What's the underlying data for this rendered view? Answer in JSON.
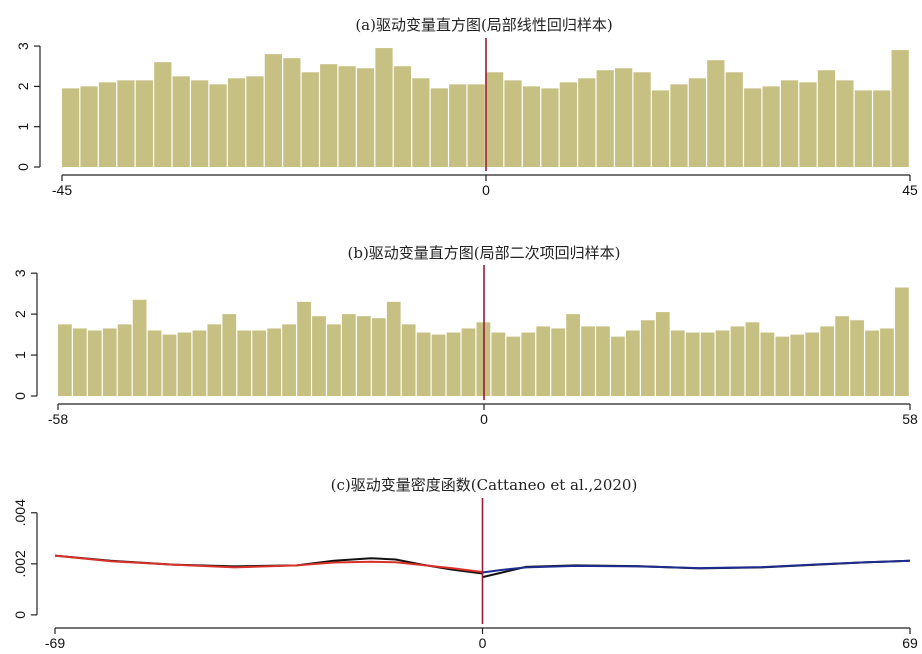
{
  "chart_data": [
    {
      "id": "a",
      "type": "bar",
      "title": "(a)驱动变量直方图(局部线性回归样本)",
      "xlim": [
        -45,
        45
      ],
      "xticks": [
        "-45",
        "0",
        "45"
      ],
      "ylim": [
        0,
        3.2
      ],
      "yticks": [
        "0",
        "1",
        "2",
        "3"
      ],
      "bar_color": "#c7c083",
      "cutoff": 0,
      "cutoff_color": "#9b1b37",
      "values": [
        1.95,
        2.0,
        2.1,
        2.15,
        2.15,
        2.6,
        2.25,
        2.15,
        2.05,
        2.2,
        2.25,
        2.8,
        2.7,
        2.35,
        2.55,
        2.5,
        2.45,
        2.95,
        2.5,
        2.2,
        1.95,
        2.05,
        2.05,
        2.35,
        2.15,
        2.0,
        1.95,
        2.1,
        2.2,
        2.4,
        2.45,
        2.35,
        1.9,
        2.05,
        2.2,
        2.65,
        2.35,
        1.95,
        2.0,
        2.15,
        2.1,
        2.4,
        2.15,
        1.9,
        1.9,
        2.9
      ]
    },
    {
      "id": "b",
      "type": "bar",
      "title": "(b)驱动变量直方图(局部二次项回归样本)",
      "xlim": [
        -58,
        58
      ],
      "xticks": [
        "-58",
        "0",
        "58"
      ],
      "ylim": [
        0,
        3.2
      ],
      "yticks": [
        "0",
        "1",
        "2",
        "3"
      ],
      "bar_color": "#c7c083",
      "cutoff": 0,
      "cutoff_color": "#9b1b37",
      "values": [
        1.75,
        1.65,
        1.6,
        1.65,
        1.75,
        2.35,
        1.6,
        1.5,
        1.55,
        1.6,
        1.75,
        2.0,
        1.6,
        1.6,
        1.65,
        1.75,
        2.3,
        1.95,
        1.75,
        2.0,
        1.95,
        1.9,
        2.3,
        1.75,
        1.55,
        1.5,
        1.55,
        1.65,
        1.8,
        1.55,
        1.45,
        1.55,
        1.7,
        1.65,
        2.0,
        1.7,
        1.7,
        1.45,
        1.6,
        1.85,
        2.05,
        1.6,
        1.55,
        1.55,
        1.6,
        1.7,
        1.8,
        1.55,
        1.45,
        1.5,
        1.55,
        1.7,
        1.95,
        1.85,
        1.6,
        1.65,
        2.65
      ]
    },
    {
      "id": "c",
      "type": "line",
      "title": "(c)驱动变量密度函数(Cattaneo et al.,2020)",
      "xlim": [
        -69,
        69
      ],
      "xticks": [
        "-69",
        "0",
        "69"
      ],
      "ylim": [
        -0.0002,
        0.0045
      ],
      "yticks": [
        "0",
        ".002",
        ".004"
      ],
      "cutoff": 0,
      "cutoff_color": "#9b1b37",
      "series": [
        {
          "color": "#111111",
          "x": [
            -69,
            -60,
            -50,
            -40,
            -30,
            -24,
            -18,
            -14,
            -10,
            -5,
            0
          ],
          "y": [
            0.00232,
            0.00212,
            0.00197,
            0.0019,
            0.00194,
            0.00212,
            0.00222,
            0.00217,
            0.00198,
            0.00178,
            0.00162
          ]
        },
        {
          "color": "#d9302a",
          "x": [
            -69,
            -60,
            -50,
            -40,
            -30,
            -24,
            -18,
            -14,
            -10,
            -5,
            0
          ],
          "y": [
            0.00232,
            0.0021,
            0.00197,
            0.00186,
            0.00194,
            0.00205,
            0.00208,
            0.00206,
            0.00196,
            0.00183,
            0.00168
          ]
        },
        {
          "color": "#111111",
          "x": [
            0,
            3,
            7,
            15,
            25,
            35,
            45,
            55,
            62,
            69
          ],
          "y": [
            0.00148,
            0.00165,
            0.00188,
            0.00194,
            0.00191,
            0.00182,
            0.00186,
            0.00198,
            0.00206,
            0.00212
          ]
        },
        {
          "color": "#1e2c8f",
          "x": [
            0,
            3,
            7,
            15,
            25,
            35,
            45,
            55,
            62,
            69
          ],
          "y": [
            0.00166,
            0.00176,
            0.00186,
            0.00192,
            0.0019,
            0.00183,
            0.00187,
            0.00199,
            0.00206,
            0.00212
          ]
        }
      ]
    }
  ]
}
